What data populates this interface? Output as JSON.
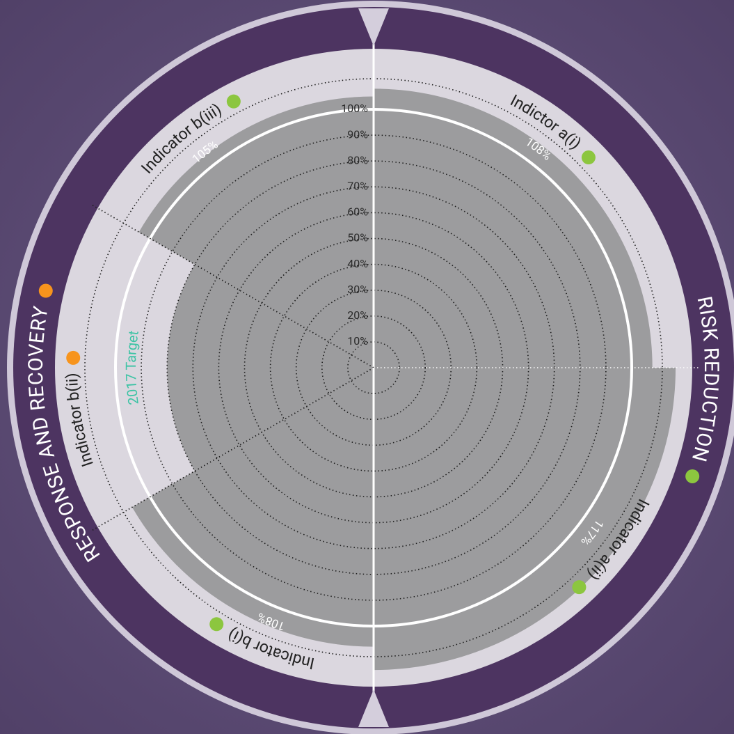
{
  "chart_data": {
    "type": "polar_bar",
    "categories": [
      "Indictor a(i)",
      "Indicator a(ii)",
      "Indicator b(i)",
      "Indicator b(ii)",
      "Indicator b(iii)"
    ],
    "values": [
      108,
      117,
      108,
      80,
      105
    ],
    "value_labels": [
      "108%",
      "117%",
      "108%",
      null,
      "105%"
    ],
    "status_colors": [
      "#8cc63f",
      "#8cc63f",
      "#8cc63f",
      "#f7941d",
      "#8cc63f"
    ],
    "category_groups": [
      0,
      0,
      1,
      1,
      1
    ],
    "groups": [
      {
        "name": "RISK REDUCTION",
        "color": "#8cc63f"
      },
      {
        "name": "RESPONSE AND RECOVERY",
        "color": "#f7941d"
      }
    ],
    "color": "#9c9c9e",
    "rlim": [
      0,
      100
    ],
    "rticks": [
      {
        "value": 10,
        "label": "10%"
      },
      {
        "value": 20,
        "label": "20%"
      },
      {
        "value": 30,
        "label": "30%"
      },
      {
        "value": 40,
        "label": "40%"
      },
      {
        "value": 50,
        "label": "50%"
      },
      {
        "value": 60,
        "label": "60%"
      },
      {
        "value": 70,
        "label": "70%"
      },
      {
        "value": 80,
        "label": "80%"
      },
      {
        "value": 90,
        "label": "90%"
      },
      {
        "value": 100,
        "label": "100%"
      }
    ],
    "target_label": "2017 Target",
    "target_color": "#3cc3a4"
  }
}
